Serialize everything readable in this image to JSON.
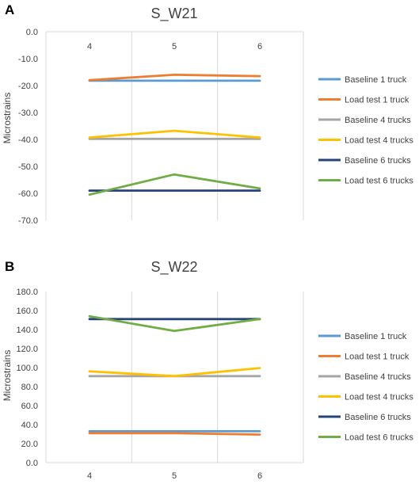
{
  "chart_data": [
    {
      "panel": "A",
      "type": "line",
      "title": "S_W21",
      "ylabel": "Microstrains",
      "xlabel": "",
      "x": [
        "4",
        "5",
        "6"
      ],
      "ylim": [
        -70,
        0
      ],
      "ytick_step": 10,
      "ytick_labels": [
        "0.0",
        "-10.0",
        "-20.0",
        "-30.0",
        "-40.0",
        "-50.0",
        "-60.0",
        "-70.0"
      ],
      "x_axis_position": "top",
      "grid": "vertical",
      "legend_position": "right",
      "series": [
        {
          "name": "Baseline 1 truck",
          "color": "#5B9BD5",
          "values": [
            -18.2,
            -18.2,
            -18.2
          ]
        },
        {
          "name": "Load test 1 truck",
          "color": "#ED7D31",
          "values": [
            -18.0,
            -16.0,
            -16.5
          ]
        },
        {
          "name": "Baseline 4 trucks",
          "color": "#A5A5A5",
          "values": [
            -39.8,
            -39.8,
            -39.8
          ]
        },
        {
          "name": "Load test 4 trucks",
          "color": "#FFC000",
          "values": [
            -39.3,
            -36.8,
            -39.3
          ]
        },
        {
          "name": "Baseline 6 trucks",
          "color": "#264478",
          "values": [
            -59.0,
            -59.0,
            -59.0
          ]
        },
        {
          "name": "Load test 6 trucks",
          "color": "#70AD47",
          "values": [
            -60.5,
            -53.0,
            -58.2
          ]
        }
      ]
    },
    {
      "panel": "B",
      "type": "line",
      "title": "S_W22",
      "ylabel": "Microstrains",
      "xlabel": "",
      "x": [
        "4",
        "5",
        "6"
      ],
      "ylim": [
        0,
        180
      ],
      "ytick_step": 20,
      "ytick_labels": [
        "180.0",
        "160.0",
        "140.0",
        "120.0",
        "100.0",
        "80.0",
        "60.0",
        "40.0",
        "20.0",
        "0.0"
      ],
      "x_axis_position": "bottom",
      "grid": "vertical",
      "legend_position": "right",
      "series": [
        {
          "name": "Baseline 1 truck",
          "color": "#5B9BD5",
          "values": [
            33.0,
            33.0,
            33.0
          ]
        },
        {
          "name": "Load test 1 truck",
          "color": "#ED7D31",
          "values": [
            31.0,
            31.0,
            29.5
          ]
        },
        {
          "name": "Baseline 4 trucks",
          "color": "#A5A5A5",
          "values": [
            91.0,
            91.0,
            91.0
          ]
        },
        {
          "name": "Load test 4 trucks",
          "color": "#FFC000",
          "values": [
            96.0,
            91.0,
            99.5
          ]
        },
        {
          "name": "Baseline 6 trucks",
          "color": "#264478",
          "values": [
            151.0,
            151.0,
            151.0
          ]
        },
        {
          "name": "Load test 6 trucks",
          "color": "#70AD47",
          "values": [
            154.0,
            138.5,
            151.0
          ]
        }
      ]
    }
  ]
}
